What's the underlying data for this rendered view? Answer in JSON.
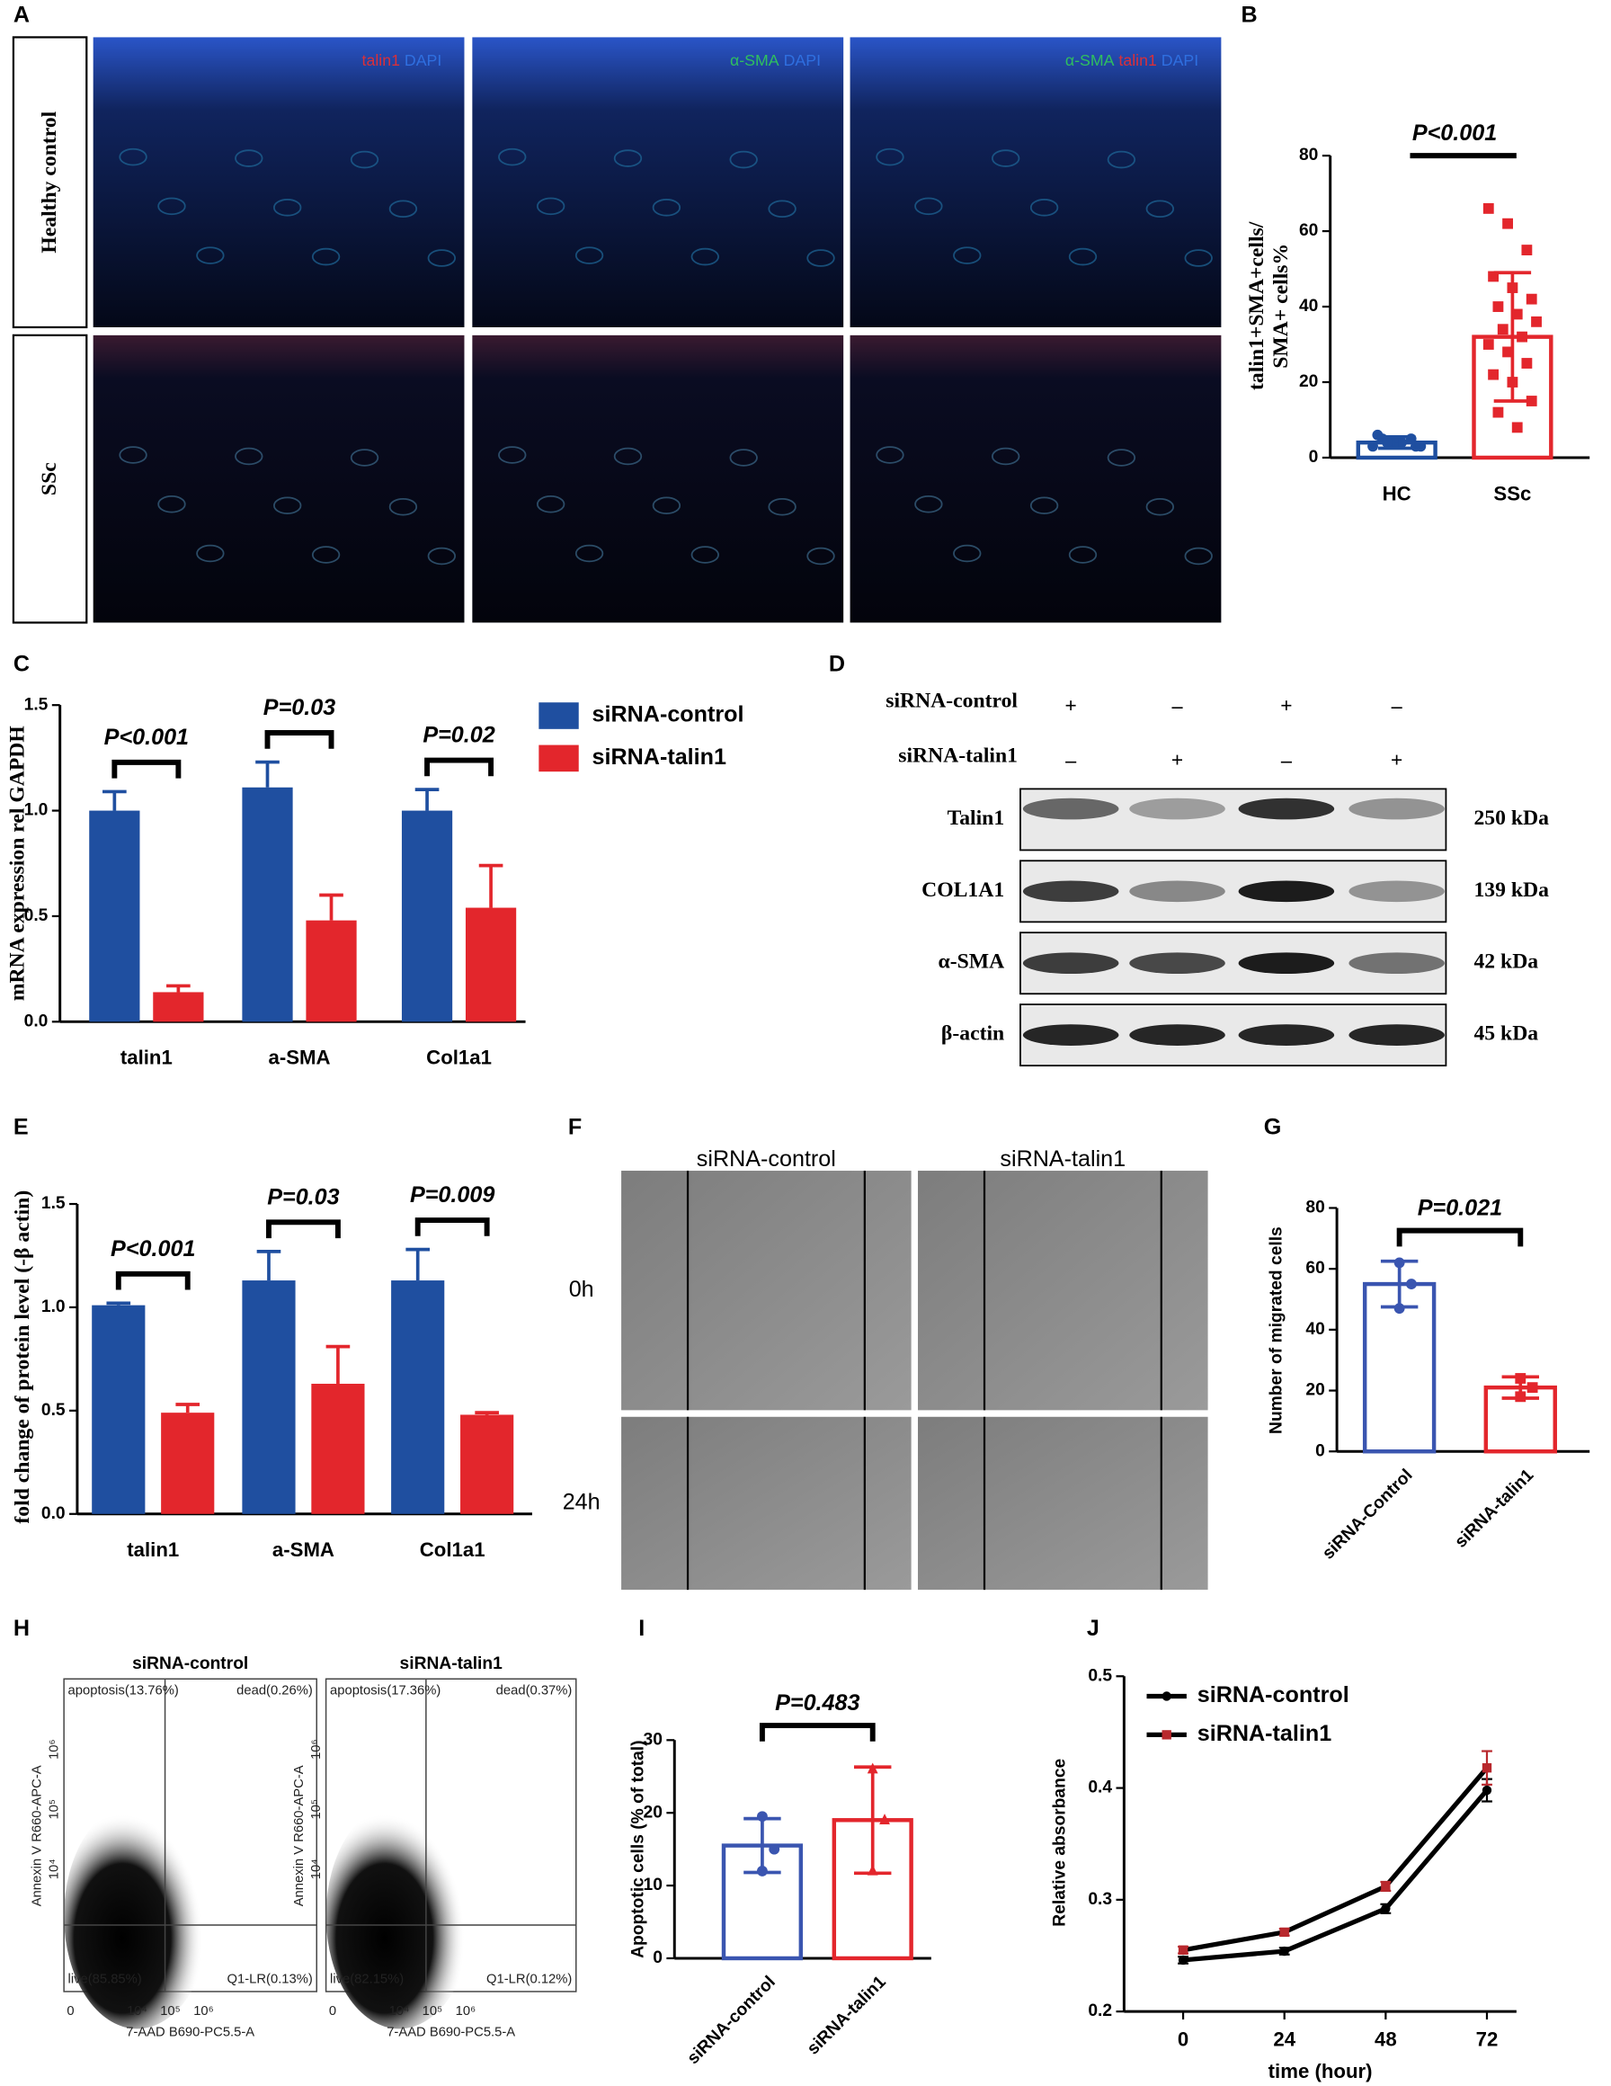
{
  "panel_labels": [
    "A",
    "B",
    "C",
    "D",
    "E",
    "F",
    "G",
    "H",
    "I",
    "J"
  ],
  "panel_a": {
    "row_labels": [
      "Healthy control",
      "SSc"
    ],
    "channels": [
      [
        {
          "text": "talin1",
          "color": "#d8303a"
        },
        {
          "text": "DAPI",
          "color": "#2f6fe0"
        }
      ],
      [
        {
          "text": "α-SMA",
          "color": "#2fbf5f"
        },
        {
          "text": "DAPI",
          "color": "#2f6fe0"
        }
      ],
      [
        {
          "text": "α-SMA",
          "color": "#2fbf5f"
        },
        {
          "text": "talin1",
          "color": "#d8303a"
        },
        {
          "text": "DAPI",
          "color": "#2f6fe0"
        }
      ]
    ]
  },
  "panel_d": {
    "treatments": [
      {
        "name": "siRNA-control",
        "signs": [
          "+",
          "–",
          "+",
          "–"
        ]
      },
      {
        "name": "siRNA-talin1",
        "signs": [
          "–",
          "+",
          "–",
          "+"
        ]
      }
    ],
    "bands": [
      {
        "protein": "Talin1",
        "size": "250 kDa"
      },
      {
        "protein": "COL1A1",
        "size": "139 kDa"
      },
      {
        "protein": "α-SMA",
        "size": "42 kDa"
      },
      {
        "protein": "β-actin",
        "size": "45 kDa"
      }
    ]
  },
  "panel_f": {
    "columns": [
      "siRNA-control",
      "siRNA-talin1"
    ],
    "rows": [
      "0h",
      "24h"
    ]
  },
  "panel_h": {
    "plots": [
      {
        "title": "siRNA-control",
        "upper_left": "apoptosis(13.76%)",
        "upper_right": "dead(0.26%)",
        "lower_left": "live(85.85%)",
        "lower_right": "Q1-LR(0.13%)"
      },
      {
        "title": "siRNA-talin1",
        "upper_left": "apoptosis(17.36%)",
        "upper_right": "dead(0.37%)",
        "lower_left": "live(82.15%)",
        "lower_right": "Q1-LR(0.12%)"
      }
    ],
    "x_label": "7-AAD B690-PC5.5-A",
    "y_label": "Annexin V R660-APC-A",
    "x_ticks": [
      "0",
      "10⁴",
      "10⁵",
      "10⁶"
    ],
    "y_ticks": [
      "10⁴",
      "10⁵",
      "10⁶"
    ]
  },
  "chart_data": [
    {
      "type": "bar",
      "categories": [
        "HC",
        "SSc"
      ],
      "values": [
        4,
        32
      ],
      "errors": [
        1.5,
        17
      ],
      "points": [
        [
          3,
          4,
          5,
          6,
          4,
          3,
          5,
          4,
          3,
          4
        ],
        [
          66,
          62,
          55,
          48,
          45,
          42,
          40,
          38,
          36,
          34,
          32,
          30,
          28,
          25,
          22,
          20,
          15,
          12,
          8
        ]
      ],
      "colors": [
        "#1f4fa0",
        "#e3262c"
      ],
      "markers": [
        "circle",
        "square"
      ],
      "ylabel": [
        "talin1+SMA+cells/",
        "SMA+ cells%"
      ],
      "ylim": [
        0,
        80
      ],
      "yticks": [
        0,
        20,
        40,
        60,
        80
      ],
      "annotation": "P<0.001"
    },
    {
      "type": "bar",
      "categories": [
        "talin1",
        "a-SMA",
        "Col1a1"
      ],
      "series": [
        {
          "name": "siRNA-control",
          "color": "#1f4fa0",
          "values": [
            1.0,
            1.11,
            1.0
          ],
          "errors": [
            0.09,
            0.12,
            0.1
          ]
        },
        {
          "name": "siRNA-talin1",
          "color": "#e3262c",
          "values": [
            0.14,
            0.48,
            0.54
          ],
          "errors": [
            0.03,
            0.12,
            0.2
          ]
        }
      ],
      "ylabel": [
        "mRNA expression rel GAPDH"
      ],
      "ylim": [
        0,
        1.5
      ],
      "yticks": [
        {
          "value": 0,
          "label": "0.0"
        },
        {
          "value": 0.5,
          "label": "0.5"
        },
        {
          "value": 1,
          "label": "1.0"
        },
        {
          "value": 1.5,
          "label": "1.5"
        }
      ],
      "annotations": [
        "P<0.001",
        "P=0.03",
        "P=0.02"
      ]
    },
    {
      "type": "bar",
      "categories": [
        "talin1",
        "a-SMA",
        "Col1a1"
      ],
      "series": [
        {
          "name": "siRNA-control",
          "color": "#1f4fa0",
          "values": [
            1.01,
            1.13,
            1.13
          ],
          "errors": [
            0.01,
            0.14,
            0.15
          ]
        },
        {
          "name": "siRNA-talin1",
          "color": "#e3262c",
          "values": [
            0.49,
            0.63,
            0.48
          ],
          "errors": [
            0.04,
            0.18,
            0.01
          ]
        }
      ],
      "ylabel": [
        "fold change of protein level (-β actin)"
      ],
      "ylim": [
        0,
        1.5
      ],
      "yticks": [
        {
          "value": 0,
          "label": "0.0"
        },
        {
          "value": 0.5,
          "label": "0.5"
        },
        {
          "value": 1,
          "label": "1.0"
        },
        {
          "value": 1.5,
          "label": "1.5"
        }
      ],
      "annotations": [
        "P<0.001",
        "P=0.03",
        "P=0.009"
      ]
    },
    {
      "type": "bar",
      "categories": [
        "siRNA-Control",
        "siRNA-talin1"
      ],
      "values": [
        55,
        21
      ],
      "errors": [
        7.5,
        3.5
      ],
      "points": [
        [
          62,
          55,
          47
        ],
        [
          24,
          21,
          18
        ]
      ],
      "colors": [
        "#3a55b0",
        "#e3262c"
      ],
      "markers": [
        "circle",
        "square"
      ],
      "ylabel": [
        "Number of migrated cells"
      ],
      "ylim": [
        0,
        80
      ],
      "yticks": [
        0,
        20,
        40,
        60,
        80
      ],
      "annotation": "P=0.021"
    },
    {
      "type": "bar",
      "categories": [
        "siRNA-control",
        "siRNA-talin1"
      ],
      "values": [
        15.5,
        19
      ],
      "errors": [
        3.7,
        7.3
      ],
      "points": [
        [
          19.5,
          15,
          12
        ],
        [
          26,
          19,
          12
        ]
      ],
      "colors": [
        "#3a55b0",
        "#e3262c"
      ],
      "markers": [
        "circle",
        "triangle"
      ],
      "ylabel": [
        "Apoptotic cells (% of total)"
      ],
      "ylim": [
        0,
        30
      ],
      "yticks": [
        0,
        10,
        20,
        30
      ],
      "annotation": "P=0.483"
    },
    {
      "type": "line",
      "x": [
        0,
        24,
        48,
        72
      ],
      "series": [
        {
          "name": "siRNA-control",
          "color": "#000000",
          "marker": "circle",
          "values": [
            0.246,
            0.254,
            0.292,
            0.398
          ],
          "errors": [
            0.003,
            0.003,
            0.004,
            0.01
          ]
        },
        {
          "name": "siRNA-talin1",
          "color": "#b8282d",
          "marker": "square",
          "values": [
            0.255,
            0.271,
            0.312,
            0.418
          ],
          "errors": [
            0.003,
            0.003,
            0.004,
            0.015
          ]
        }
      ],
      "line_color": "#000000",
      "xlabel": "time (hour)",
      "ylabel": [
        "Relative absorbance"
      ],
      "xlim": [
        -14,
        79
      ],
      "xticks": [
        0,
        24,
        48,
        72
      ],
      "ylim": [
        0.2,
        0.5
      ],
      "yticks": [
        0.2,
        0.3,
        0.4,
        0.5
      ]
    }
  ]
}
